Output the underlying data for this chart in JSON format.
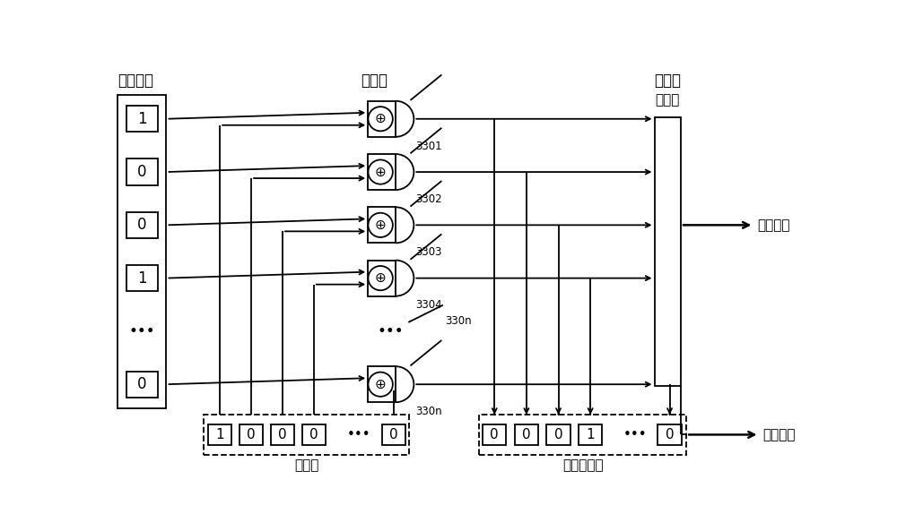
{
  "bg_color": "#ffffff",
  "line_color": "#000000",
  "keyword_label": "关键字项",
  "operator_label": "运算器",
  "counter_label": "计数器",
  "table_row_label": "表项行",
  "position_reg_label": "位置寄存器",
  "count_output_label": "计数输出",
  "position_output_label": "位置输出",
  "keyword_values": [
    "1",
    "0",
    "0",
    "1",
    "⋯",
    "0"
  ],
  "table_values": [
    "1",
    "0",
    "0",
    "0",
    "⋯",
    "0"
  ],
  "position_values": [
    "0",
    "0",
    "0",
    "1",
    "⋯",
    "0"
  ],
  "op_labels": [
    "3301",
    "3302",
    "3303",
    "3304",
    "330n"
  ],
  "figw": 10.0,
  "figh": 5.93,
  "lw": 1.3
}
